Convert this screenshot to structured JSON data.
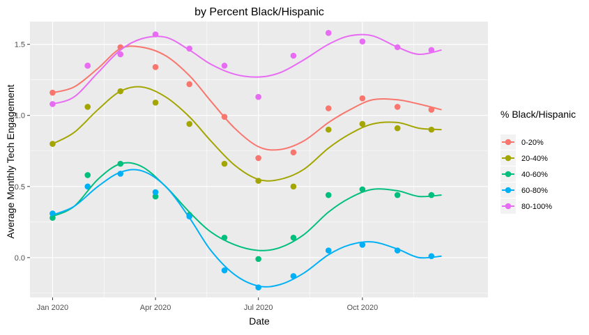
{
  "chart_data": {
    "type": "line",
    "title": "by Percent Black/Hispanic",
    "xlabel": "Date",
    "ylabel": "Average Monthly Tech Engagement",
    "x_tick_labels": [
      "Jan 2020",
      "Apr 2020",
      "Jul 2020",
      "Oct 2020"
    ],
    "x_tick_values": [
      "2020-01-01",
      "2020-04-01",
      "2020-07-01",
      "2020-10-01"
    ],
    "y_tick_labels": [
      "0.0",
      "0.5",
      "1.0",
      "1.5"
    ],
    "y_tick_values": [
      0.0,
      0.5,
      1.0,
      1.5
    ],
    "xlim": [
      "2019-12-12",
      "2021-01-20"
    ],
    "ylim": [
      -0.28,
      1.66
    ],
    "grid": true,
    "legend_position": "right",
    "legend_title": "% Black/Hispanic",
    "x": [
      "2020-01-01",
      "2020-02-01",
      "2020-03-01",
      "2020-04-01",
      "2020-05-01",
      "2020-06-01",
      "2020-07-01",
      "2020-08-01",
      "2020-09-01",
      "2020-10-01",
      "2020-11-01",
      "2020-12-01"
    ],
    "series": [
      {
        "name": "0-20%",
        "color": "#F8766D",
        "points": [
          1.16,
          1.35,
          1.48,
          1.34,
          1.22,
          0.99,
          0.7,
          0.74,
          1.05,
          1.12,
          1.06,
          1.04
        ],
        "smooth": [
          [
            "2020-01-01",
            1.16
          ],
          [
            "2020-01-20",
            1.2
          ],
          [
            "2020-02-10",
            1.33
          ],
          [
            "2020-03-01",
            1.47
          ],
          [
            "2020-03-20",
            1.48
          ],
          [
            "2020-04-10",
            1.42
          ],
          [
            "2020-05-01",
            1.28
          ],
          [
            "2020-05-20",
            1.1
          ],
          [
            "2020-06-10",
            0.91
          ],
          [
            "2020-07-01",
            0.78
          ],
          [
            "2020-07-20",
            0.76
          ],
          [
            "2020-08-10",
            0.82
          ],
          [
            "2020-09-01",
            0.95
          ],
          [
            "2020-09-20",
            1.04
          ],
          [
            "2020-10-10",
            1.11
          ],
          [
            "2020-11-01",
            1.11
          ],
          [
            "2020-11-20",
            1.08
          ],
          [
            "2020-12-10",
            1.04
          ]
        ]
      },
      {
        "name": "20-40%",
        "color": "#A3A500",
        "points": [
          0.8,
          1.06,
          1.17,
          1.09,
          0.94,
          0.66,
          0.54,
          0.5,
          0.9,
          0.94,
          0.91,
          0.9
        ],
        "smooth": [
          [
            "2020-01-01",
            0.8
          ],
          [
            "2020-01-20",
            0.88
          ],
          [
            "2020-02-10",
            1.04
          ],
          [
            "2020-03-01",
            1.17
          ],
          [
            "2020-03-20",
            1.2
          ],
          [
            "2020-04-10",
            1.13
          ],
          [
            "2020-05-01",
            0.99
          ],
          [
            "2020-05-20",
            0.82
          ],
          [
            "2020-06-10",
            0.65
          ],
          [
            "2020-07-01",
            0.55
          ],
          [
            "2020-07-20",
            0.55
          ],
          [
            "2020-08-10",
            0.62
          ],
          [
            "2020-09-01",
            0.77
          ],
          [
            "2020-09-20",
            0.87
          ],
          [
            "2020-10-10",
            0.94
          ],
          [
            "2020-11-01",
            0.95
          ],
          [
            "2020-11-20",
            0.91
          ],
          [
            "2020-12-10",
            0.9
          ]
        ]
      },
      {
        "name": "40-60%",
        "color": "#00BF7D",
        "points": [
          0.28,
          0.58,
          0.66,
          0.43,
          0.3,
          0.14,
          -0.01,
          0.14,
          0.44,
          0.48,
          0.44,
          0.44
        ],
        "smooth": [
          [
            "2020-01-01",
            0.29
          ],
          [
            "2020-01-20",
            0.36
          ],
          [
            "2020-02-10",
            0.55
          ],
          [
            "2020-03-01",
            0.66
          ],
          [
            "2020-03-20",
            0.64
          ],
          [
            "2020-04-10",
            0.5
          ],
          [
            "2020-05-01",
            0.32
          ],
          [
            "2020-05-20",
            0.18
          ],
          [
            "2020-06-10",
            0.09
          ],
          [
            "2020-07-01",
            0.05
          ],
          [
            "2020-07-20",
            0.07
          ],
          [
            "2020-08-10",
            0.16
          ],
          [
            "2020-09-01",
            0.32
          ],
          [
            "2020-09-20",
            0.42
          ],
          [
            "2020-10-10",
            0.48
          ],
          [
            "2020-11-01",
            0.47
          ],
          [
            "2020-11-20",
            0.43
          ],
          [
            "2020-12-10",
            0.44
          ]
        ]
      },
      {
        "name": "60-80%",
        "color": "#00B0F6",
        "points": [
          0.31,
          0.5,
          0.59,
          0.46,
          0.29,
          -0.09,
          -0.21,
          -0.13,
          0.05,
          0.09,
          0.05,
          0.01
        ],
        "smooth": [
          [
            "2020-01-01",
            0.3
          ],
          [
            "2020-01-20",
            0.36
          ],
          [
            "2020-02-10",
            0.5
          ],
          [
            "2020-03-01",
            0.6
          ],
          [
            "2020-03-20",
            0.61
          ],
          [
            "2020-04-10",
            0.5
          ],
          [
            "2020-05-01",
            0.28
          ],
          [
            "2020-05-20",
            0.05
          ],
          [
            "2020-06-10",
            -0.12
          ],
          [
            "2020-07-01",
            -0.2
          ],
          [
            "2020-07-20",
            -0.19
          ],
          [
            "2020-08-10",
            -0.11
          ],
          [
            "2020-09-01",
            0.02
          ],
          [
            "2020-09-20",
            0.09
          ],
          [
            "2020-10-10",
            0.11
          ],
          [
            "2020-11-01",
            0.06
          ],
          [
            "2020-11-20",
            -0.0
          ],
          [
            "2020-12-10",
            0.01
          ]
        ]
      },
      {
        "name": "80-100%",
        "color": "#E76BF3",
        "points": [
          1.08,
          1.35,
          1.43,
          1.57,
          1.47,
          1.35,
          1.13,
          1.42,
          1.58,
          1.52,
          1.48,
          1.46
        ],
        "smooth": [
          [
            "2020-01-01",
            1.08
          ],
          [
            "2020-01-20",
            1.13
          ],
          [
            "2020-02-10",
            1.3
          ],
          [
            "2020-03-01",
            1.46
          ],
          [
            "2020-03-20",
            1.54
          ],
          [
            "2020-04-10",
            1.55
          ],
          [
            "2020-05-01",
            1.46
          ],
          [
            "2020-05-20",
            1.36
          ],
          [
            "2020-06-10",
            1.29
          ],
          [
            "2020-07-01",
            1.27
          ],
          [
            "2020-07-20",
            1.3
          ],
          [
            "2020-08-10",
            1.39
          ],
          [
            "2020-09-01",
            1.5
          ],
          [
            "2020-09-20",
            1.56
          ],
          [
            "2020-10-10",
            1.56
          ],
          [
            "2020-11-01",
            1.48
          ],
          [
            "2020-11-20",
            1.43
          ],
          [
            "2020-12-10",
            1.46
          ]
        ]
      }
    ]
  }
}
